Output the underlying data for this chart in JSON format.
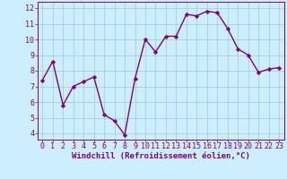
{
  "x": [
    0,
    1,
    2,
    3,
    4,
    5,
    6,
    7,
    8,
    9,
    10,
    11,
    12,
    13,
    14,
    15,
    16,
    17,
    18,
    19,
    20,
    21,
    22,
    23
  ],
  "y": [
    7.4,
    8.6,
    5.8,
    7.0,
    7.3,
    7.6,
    5.2,
    4.8,
    3.9,
    7.5,
    10.0,
    9.2,
    10.2,
    10.2,
    11.6,
    11.5,
    11.8,
    11.7,
    10.7,
    9.4,
    9.0,
    7.9,
    8.1,
    8.2
  ],
  "line_color": "#800080",
  "marker": "D",
  "marker_size": 2.2,
  "line_width": 1.0,
  "bg_color": "#cceeff",
  "grid_color": "#99cccc",
  "xlabel": "Windchill (Refroidissement éolien,°C)",
  "xlabel_color": "#800080",
  "xlabel_fontsize": 6.5,
  "tick_color": "#800080",
  "tick_fontsize": 6.0,
  "ylim": [
    3.6,
    12.4
  ],
  "xlim": [
    -0.5,
    23.5
  ],
  "yticks": [
    4,
    5,
    6,
    7,
    8,
    9,
    10,
    11,
    12
  ],
  "xticks": [
    0,
    1,
    2,
    3,
    4,
    5,
    6,
    7,
    8,
    9,
    10,
    11,
    12,
    13,
    14,
    15,
    16,
    17,
    18,
    19,
    20,
    21,
    22,
    23
  ]
}
